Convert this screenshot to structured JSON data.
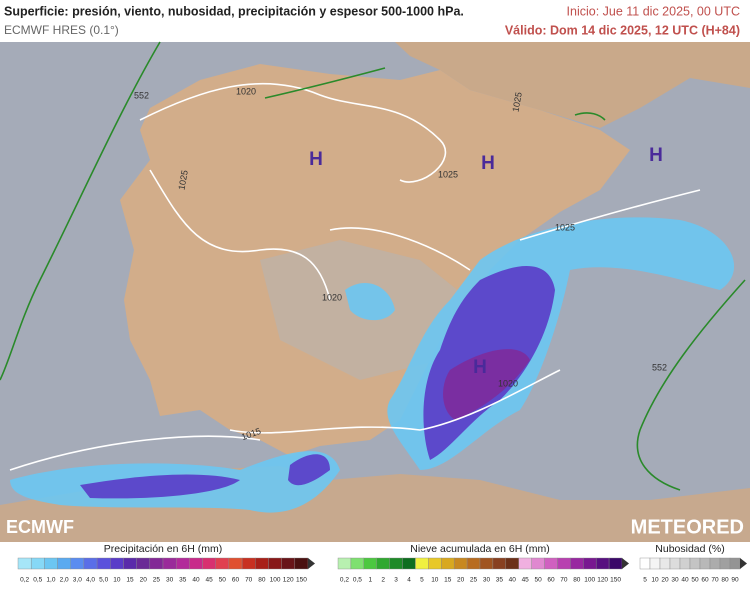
{
  "header": {
    "title": "Superficie: presión, viento, nubosidad, precipitación y espesor 500-1000 hPa.",
    "model": "ECMWF HRES (0.1°)",
    "init": "Inicio: Jue 11 dic 2025, 00 UTC",
    "valid": "Válido: Dom 14 dic 2025, 12 UTC (H+84)"
  },
  "map": {
    "highs": [
      "H",
      "H",
      "H",
      "H"
    ],
    "isobars": [
      "1020",
      "1025",
      "1025",
      "1025",
      "1025",
      "1020",
      "1020",
      "1015"
    ],
    "thickness": [
      "552",
      "552"
    ]
  },
  "logos": {
    "left": "ECMWF",
    "right": "METEORED"
  },
  "legends": [
    {
      "title": "Precipitación en 6H (mm)",
      "items": [
        {
          "label": "0,2",
          "color": "#a6e6f8"
        },
        {
          "label": "0,5",
          "color": "#86d8f6"
        },
        {
          "label": "1,0",
          "color": "#6cc6f2"
        },
        {
          "label": "2,0",
          "color": "#5aaaf0"
        },
        {
          "label": "3,0",
          "color": "#5a8cf0"
        },
        {
          "label": "4,0",
          "color": "#5a6ee8"
        },
        {
          "label": "5,0",
          "color": "#5a52dc"
        },
        {
          "label": "10",
          "color": "#5a3cc8"
        },
        {
          "label": "15",
          "color": "#5a2aaa"
        },
        {
          "label": "20",
          "color": "#6a2a96"
        },
        {
          "label": "25",
          "color": "#822896"
        },
        {
          "label": "30",
          "color": "#9a2a9a"
        },
        {
          "label": "35",
          "color": "#b22a9a"
        },
        {
          "label": "40",
          "color": "#c82a8a"
        },
        {
          "label": "45",
          "color": "#d83070"
        },
        {
          "label": "50",
          "color": "#e04050"
        },
        {
          "label": "60",
          "color": "#e05030"
        },
        {
          "label": "70",
          "color": "#c83020"
        },
        {
          "label": "80",
          "color": "#a82018"
        },
        {
          "label": "100",
          "color": "#881818"
        },
        {
          "label": "120",
          "color": "#681418"
        },
        {
          "label": "150",
          "color": "#4a1010"
        }
      ]
    },
    {
      "title": "Nieve acumulada en 6H (mm)",
      "items": [
        {
          "label": "0,2",
          "color": "#b8f0b0"
        },
        {
          "label": "0,5",
          "color": "#7ee070"
        },
        {
          "label": "1",
          "color": "#4cc840"
        },
        {
          "label": "2",
          "color": "#30a830"
        },
        {
          "label": "3",
          "color": "#1e8a28"
        },
        {
          "label": "4",
          "color": "#0e6e20"
        },
        {
          "label": "5",
          "color": "#f0f040"
        },
        {
          "label": "10",
          "color": "#e8c828"
        },
        {
          "label": "15",
          "color": "#d8a820"
        },
        {
          "label": "20",
          "color": "#c88820"
        },
        {
          "label": "25",
          "color": "#b86c20"
        },
        {
          "label": "30",
          "color": "#a05420"
        },
        {
          "label": "35",
          "color": "#884020"
        },
        {
          "label": "40",
          "color": "#6c3018"
        },
        {
          "label": "45",
          "color": "#f0b0e0"
        },
        {
          "label": "50",
          "color": "#e088d0"
        },
        {
          "label": "60",
          "color": "#d060c0"
        },
        {
          "label": "70",
          "color": "#b840b0"
        },
        {
          "label": "80",
          "color": "#9828a0"
        },
        {
          "label": "100",
          "color": "#781890"
        },
        {
          "label": "120",
          "color": "#581080"
        },
        {
          "label": "150",
          "color": "#3a0868"
        }
      ]
    },
    {
      "title": "Nubosidad (%)",
      "items": [
        {
          "label": "5",
          "color": "#ffffff"
        },
        {
          "label": "10",
          "color": "#f4f4f4"
        },
        {
          "label": "20",
          "color": "#e8e8e8"
        },
        {
          "label": "30",
          "color": "#dcdcdc"
        },
        {
          "label": "40",
          "color": "#d0d0d0"
        },
        {
          "label": "50",
          "color": "#c4c4c4"
        },
        {
          "label": "60",
          "color": "#b8b8b8"
        },
        {
          "label": "70",
          "color": "#acacac"
        },
        {
          "label": "80",
          "color": "#a0a0a0"
        },
        {
          "label": "90",
          "color": "#949494"
        }
      ]
    }
  ]
}
